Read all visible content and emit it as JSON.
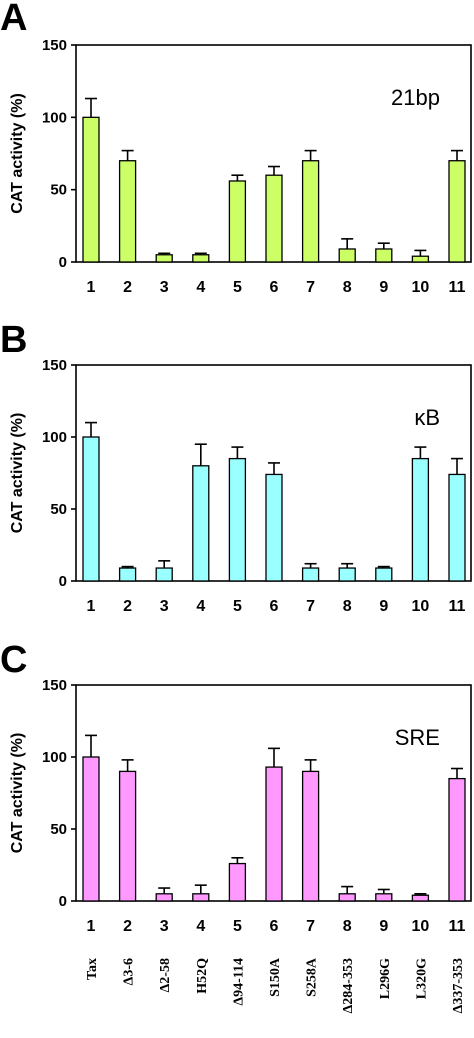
{
  "chart_data": [
    {
      "type": "bar",
      "panel": "A",
      "tag": "21bp",
      "ylabel": "CAT activity (%)",
      "ylim": [
        0,
        150
      ],
      "yticks": [
        "0",
        "50",
        "100",
        "150"
      ],
      "categories": [
        "1",
        "2",
        "3",
        "4",
        "5",
        "6",
        "7",
        "8",
        "9",
        "10",
        "11"
      ],
      "values": [
        100,
        70,
        5,
        5,
        56,
        60,
        70,
        9,
        9,
        4,
        70
      ],
      "errors": [
        13,
        7,
        1,
        1,
        4,
        6,
        7,
        7,
        4,
        4,
        7
      ],
      "color": "#ccff66"
    },
    {
      "type": "bar",
      "panel": "B",
      "tag": "κB",
      "ylabel": "CAT activity (%)",
      "ylim": [
        0,
        150
      ],
      "yticks": [
        "0",
        "50",
        "100",
        "150"
      ],
      "categories": [
        "1",
        "2",
        "3",
        "4",
        "5",
        "6",
        "7",
        "8",
        "9",
        "10",
        "11"
      ],
      "values": [
        100,
        9,
        9,
        80,
        85,
        74,
        9,
        9,
        9,
        85,
        74
      ],
      "errors": [
        10,
        1,
        5,
        15,
        8,
        8,
        3,
        3,
        1,
        8,
        11
      ],
      "color": "#99ffff"
    },
    {
      "type": "bar",
      "panel": "C",
      "tag": "SRE",
      "ylabel": "CAT activity (%)",
      "ylim": [
        0,
        150
      ],
      "yticks": [
        "0",
        "50",
        "100",
        "150"
      ],
      "categories": [
        "1",
        "2",
        "3",
        "4",
        "5",
        "6",
        "7",
        "8",
        "9",
        "10",
        "11"
      ],
      "values": [
        100,
        90,
        5,
        5,
        26,
        93,
        90,
        5,
        5,
        4,
        85
      ],
      "errors": [
        15,
        8,
        4,
        6,
        4,
        13,
        8,
        5,
        3,
        1,
        7
      ],
      "color": "#ff99ff",
      "mutants": [
        "Tax",
        "Δ3-6",
        "Δ2-58",
        "H52Q",
        "Δ94-114",
        "S150A",
        "S258A",
        "Δ284-353",
        "L296G",
        "L320G",
        "Δ337-353"
      ]
    }
  ]
}
